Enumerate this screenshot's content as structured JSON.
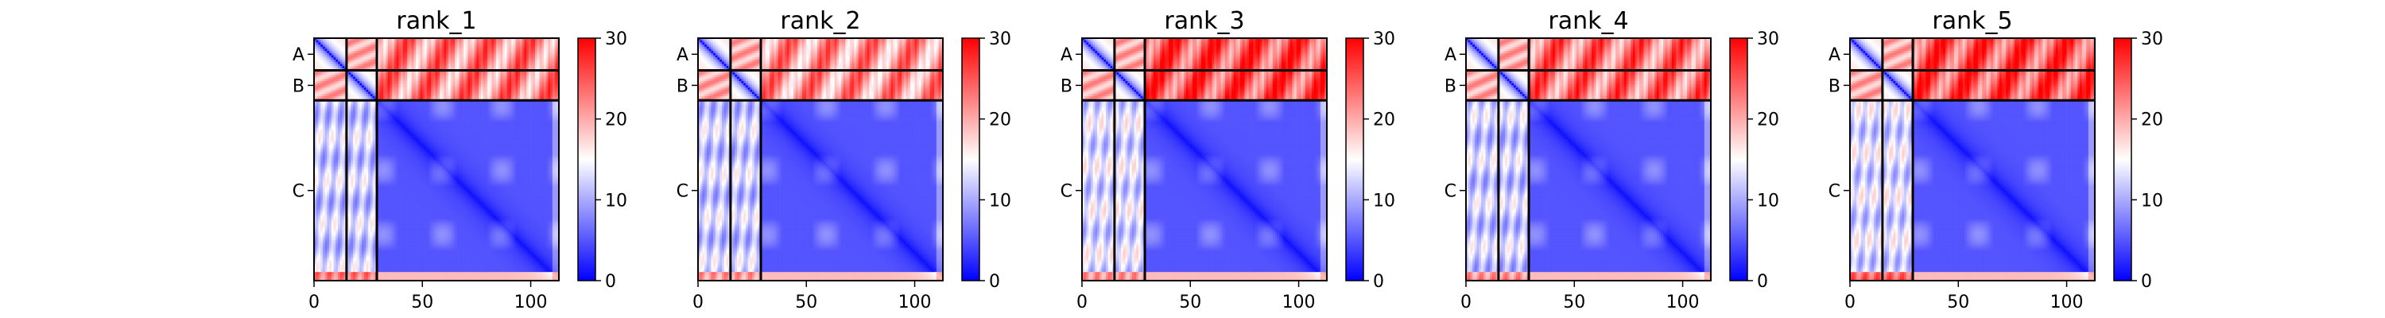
{
  "chart_data": {
    "type": "heatmap",
    "colormap": {
      "name": "bwr",
      "low_color": "#0000ff",
      "mid_color": "#ffffff",
      "high_color": "#ff0000",
      "range": [
        0,
        30
      ],
      "ticks": [
        0,
        10,
        20,
        30
      ]
    },
    "x_ticks": [
      0,
      50,
      100
    ],
    "x_range": [
      0,
      113
    ],
    "y_range": [
      0,
      113
    ],
    "chains": [
      {
        "label": "A",
        "start": 0,
        "end": 15
      },
      {
        "label": "B",
        "start": 15,
        "end": 29
      },
      {
        "label": "C",
        "start": 29,
        "end": 113
      }
    ],
    "panels": [
      {
        "title": "rank_1",
        "ab_c_block_mean": 22,
        "c_ab_block_mean": 12
      },
      {
        "title": "rank_2",
        "ab_c_block_mean": 21,
        "c_ab_block_mean": 12
      },
      {
        "title": "rank_3",
        "ab_c_block_mean": 25,
        "c_ab_block_mean": 13
      },
      {
        "title": "rank_4",
        "ab_c_block_mean": 23,
        "c_ab_block_mean": 12
      },
      {
        "title": "rank_5",
        "ab_c_block_mean": 25,
        "c_ab_block_mean": 13
      }
    ]
  }
}
